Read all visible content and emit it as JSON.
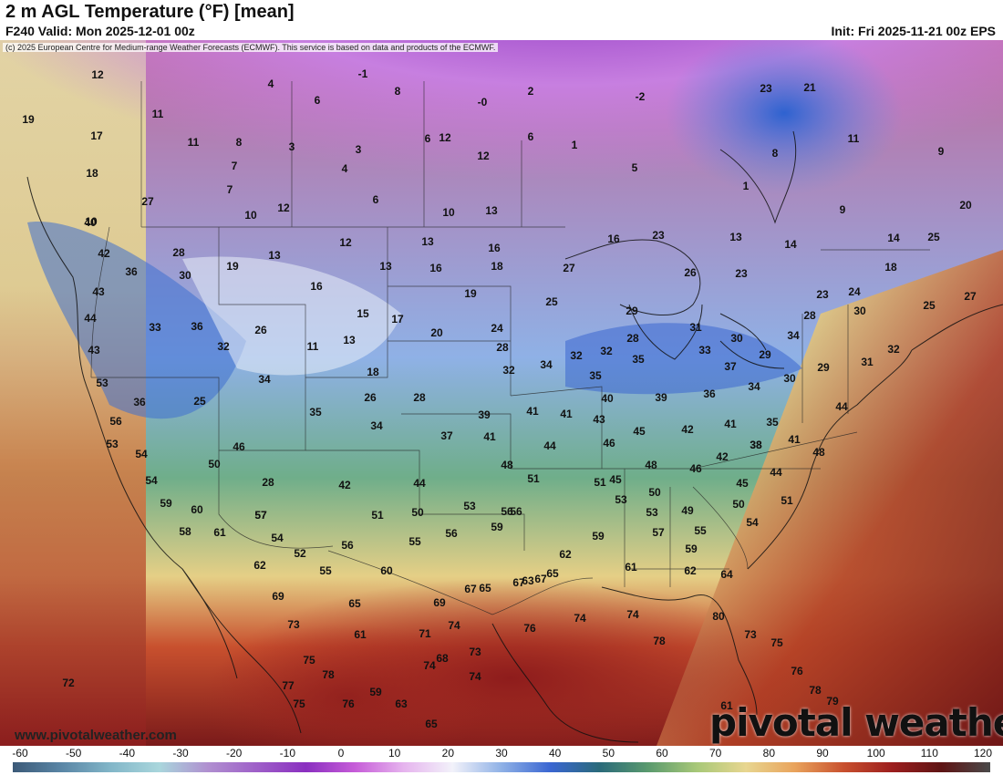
{
  "header": {
    "title": "2 m AGL Temperature (°F) [mean]",
    "valid": "F240 Valid: Mon 2025-12-01 00z",
    "init": "Init: Fri 2025-11-21 00z EPS",
    "copyright": "(c) 2025 European Centre for Medium-range Weather Forecasts (ECMWF). This service is based on data and products of the ECMWF."
  },
  "watermark": "www.pivotalweather.com",
  "brand": "pivotal weather",
  "colorbar": {
    "ticks": [
      "-60",
      "-50",
      "-40",
      "-30",
      "-20",
      "-10",
      "0",
      "10",
      "20",
      "30",
      "40",
      "50",
      "60",
      "70",
      "80",
      "90",
      "100",
      "110",
      "120"
    ],
    "colors": [
      "#3c5a78",
      "#5a86a6",
      "#82b6c8",
      "#a9d6dc",
      "#b08fd0",
      "#9e5fc8",
      "#8a2fc0",
      "#c65cd8",
      "#e6b4ee",
      "#f2f2fa",
      "#8fb1e6",
      "#3a66d2",
      "#2a6a7a",
      "#5a9a6e",
      "#a8c878",
      "#e8d690",
      "#e9a35c",
      "#c8502e",
      "#9c1e1e",
      "#5e1414",
      "#4a4a4a"
    ]
  },
  "temperatures": [
    "12",
    "4",
    "-1",
    "2",
    "-0",
    "-2",
    "23",
    "21",
    "19",
    "11",
    "6",
    "8",
    "1",
    "12",
    "11",
    "17",
    "11",
    "8",
    "3",
    "3",
    "12",
    "6",
    "6",
    "5",
    "9",
    "18",
    "7",
    "4",
    "8",
    "1",
    "7",
    "6",
    "10",
    "12",
    "13",
    "9",
    "20",
    "27",
    "10",
    "10",
    "40",
    "28",
    "12",
    "13",
    "16",
    "14",
    "23",
    "13",
    "14",
    "25",
    "42",
    "19",
    "13",
    "13",
    "16",
    "18",
    "27",
    "16",
    "23",
    "18",
    "36",
    "30",
    "16",
    "19",
    "25",
    "23",
    "24",
    "25",
    "27",
    "43",
    "15",
    "17",
    "26",
    "29",
    "30",
    "28",
    "44",
    "33",
    "36",
    "26",
    "13",
    "20",
    "24",
    "32",
    "31",
    "30",
    "34",
    "11",
    "28",
    "43",
    "32",
    "18",
    "34",
    "32",
    "28",
    "33",
    "35",
    "37",
    "29",
    "31",
    "32",
    "53",
    "34",
    "30",
    "29",
    "32",
    "26",
    "35",
    "40",
    "39",
    "36",
    "34",
    "28",
    "25",
    "36",
    "39",
    "35",
    "41",
    "41",
    "43",
    "45",
    "42",
    "41",
    "35",
    "44",
    "56",
    "34",
    "37",
    "41",
    "46",
    "44",
    "38",
    "41",
    "53",
    "46",
    "48",
    "54",
    "50",
    "48",
    "48",
    "46",
    "42",
    "38",
    "45",
    "44",
    "54",
    "28",
    "51",
    "53",
    "51",
    "50",
    "45",
    "50",
    "51",
    "56",
    "59",
    "57",
    "42",
    "44",
    "50",
    "53",
    "56",
    "53",
    "49",
    "54",
    "60",
    "57",
    "51",
    "55",
    "56",
    "59",
    "59",
    "57",
    "55",
    "59",
    "58",
    "61",
    "54",
    "62",
    "52",
    "56",
    "60",
    "63",
    "62",
    "61",
    "62",
    "64",
    "55",
    "67",
    "65",
    "65",
    "69",
    "65",
    "67",
    "67",
    "80",
    "73",
    "69",
    "73",
    "74",
    "73",
    "76",
    "74",
    "74",
    "78",
    "75",
    "72",
    "71",
    "61",
    "75",
    "68",
    "74",
    "74",
    "59",
    "78",
    "76",
    "76",
    "78",
    "79",
    "61",
    "77",
    "75",
    "63",
    "65"
  ]
}
